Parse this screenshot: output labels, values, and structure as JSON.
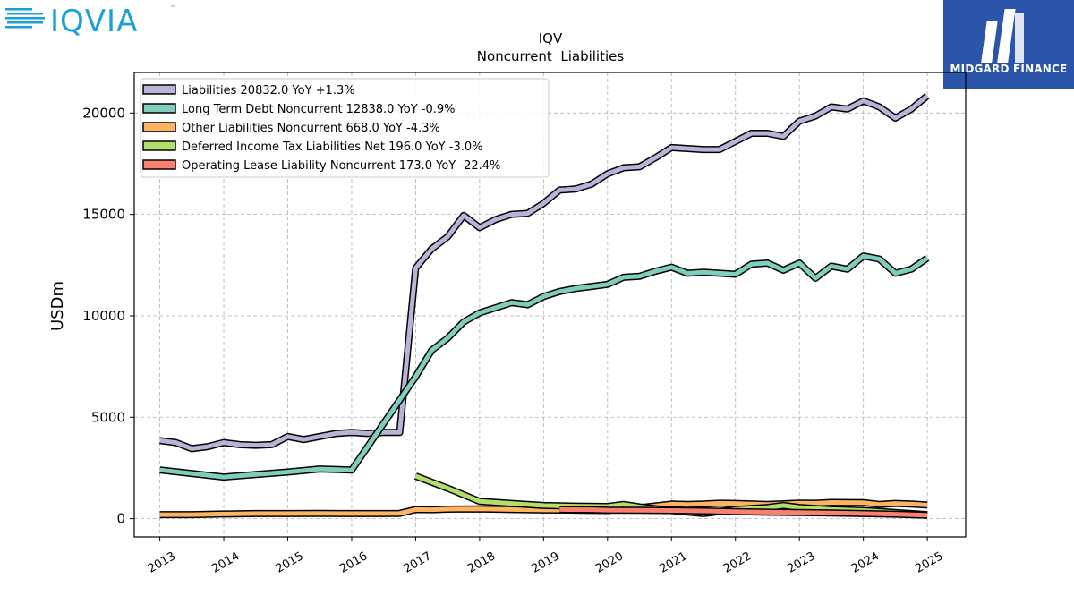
{
  "header": {
    "logo_text": "IQVIA",
    "logo_color": "#1aa0d8",
    "badge_text": "MIDGARD FINANCE",
    "badge_color": "#2a55a8"
  },
  "chart_data": {
    "type": "line",
    "title": "IQV",
    "subtitle": "Noncurrent  Liabilities",
    "ylabel": "USDm",
    "xlabel": "",
    "xlim": [
      2012.6,
      2025.6
    ],
    "ylim": [
      -900,
      22000
    ],
    "grid": true,
    "legend_position": "top-left",
    "x_ticks": [
      "2013",
      "2014",
      "2015",
      "2016",
      "2017",
      "2018",
      "2019",
      "2020",
      "2021",
      "2022",
      "2023",
      "2024",
      "2025"
    ],
    "y_ticks": [
      "0",
      "5000",
      "10000",
      "15000",
      "20000"
    ],
    "series": [
      {
        "name": "Liabilities",
        "legend": "Liabilities  20832.0 YoY +1.3%",
        "color": "#b8b4d8",
        "points": [
          [
            2013.0,
            3850
          ],
          [
            2013.25,
            3750
          ],
          [
            2013.5,
            3450
          ],
          [
            2013.75,
            3550
          ],
          [
            2014.0,
            3750
          ],
          [
            2014.25,
            3650
          ],
          [
            2014.5,
            3620
          ],
          [
            2014.75,
            3650
          ],
          [
            2015.0,
            4050
          ],
          [
            2015.25,
            3900
          ],
          [
            2015.5,
            4050
          ],
          [
            2015.75,
            4200
          ],
          [
            2016.0,
            4250
          ],
          [
            2016.25,
            4200
          ],
          [
            2016.5,
            4250
          ],
          [
            2016.75,
            4250
          ],
          [
            2017.0,
            12350
          ],
          [
            2017.25,
            13300
          ],
          [
            2017.5,
            13900
          ],
          [
            2017.75,
            14950
          ],
          [
            2018.0,
            14350
          ],
          [
            2018.25,
            14750
          ],
          [
            2018.5,
            15000
          ],
          [
            2018.75,
            15050
          ],
          [
            2019.0,
            15550
          ],
          [
            2019.25,
            16200
          ],
          [
            2019.5,
            16250
          ],
          [
            2019.75,
            16500
          ],
          [
            2020.0,
            17000
          ],
          [
            2020.25,
            17300
          ],
          [
            2020.5,
            17350
          ],
          [
            2020.75,
            17800
          ],
          [
            2021.0,
            18300
          ],
          [
            2021.25,
            18250
          ],
          [
            2021.5,
            18200
          ],
          [
            2021.75,
            18200
          ],
          [
            2022.0,
            18600
          ],
          [
            2022.25,
            19000
          ],
          [
            2022.5,
            19000
          ],
          [
            2022.75,
            18850
          ],
          [
            2023.0,
            19600
          ],
          [
            2023.25,
            19850
          ],
          [
            2023.5,
            20300
          ],
          [
            2023.75,
            20200
          ],
          [
            2024.0,
            20600
          ],
          [
            2024.25,
            20300
          ],
          [
            2024.5,
            19750
          ],
          [
            2024.75,
            20200
          ],
          [
            2025.0,
            20850
          ]
        ]
      },
      {
        "name": "Long Term Debt Noncurrent",
        "legend": "Long Term Debt Noncurrent  12838.0 YoY -0.9%",
        "color": "#7fcdbb",
        "points": [
          [
            2013.0,
            2400
          ],
          [
            2014.0,
            2050
          ],
          [
            2015.0,
            2300
          ],
          [
            2015.5,
            2450
          ],
          [
            2016.0,
            2400
          ],
          [
            2017.0,
            7000
          ],
          [
            2017.25,
            8300
          ],
          [
            2017.5,
            8900
          ],
          [
            2017.75,
            9700
          ],
          [
            2018.0,
            10150
          ],
          [
            2018.25,
            10400
          ],
          [
            2018.5,
            10650
          ],
          [
            2018.75,
            10550
          ],
          [
            2019.0,
            10950
          ],
          [
            2019.25,
            11200
          ],
          [
            2019.5,
            11350
          ],
          [
            2019.75,
            11450
          ],
          [
            2020.0,
            11550
          ],
          [
            2020.25,
            11900
          ],
          [
            2020.5,
            11950
          ],
          [
            2020.75,
            12200
          ],
          [
            2021.0,
            12400
          ],
          [
            2021.25,
            12100
          ],
          [
            2021.5,
            12150
          ],
          [
            2021.75,
            12100
          ],
          [
            2022.0,
            12050
          ],
          [
            2022.25,
            12550
          ],
          [
            2022.5,
            12600
          ],
          [
            2022.75,
            12250
          ],
          [
            2023.0,
            12600
          ],
          [
            2023.25,
            11850
          ],
          [
            2023.5,
            12450
          ],
          [
            2023.75,
            12300
          ],
          [
            2024.0,
            12950
          ],
          [
            2024.25,
            12800
          ],
          [
            2024.5,
            12100
          ],
          [
            2024.75,
            12300
          ],
          [
            2025.0,
            12850
          ]
        ]
      },
      {
        "name": "Other Liabilities Noncurrent",
        "legend": "Other Liabilities Noncurrent  668.0 YoY -4.3%",
        "color": "#fdb462",
        "points": [
          [
            2013.0,
            200
          ],
          [
            2013.5,
            200
          ],
          [
            2014.0,
            230
          ],
          [
            2014.5,
            250
          ],
          [
            2015.0,
            250
          ],
          [
            2015.5,
            260
          ],
          [
            2016.0,
            250
          ],
          [
            2016.5,
            250
          ],
          [
            2016.75,
            260
          ],
          [
            2017.0,
            450
          ],
          [
            2017.25,
            440
          ],
          [
            2017.5,
            470
          ],
          [
            2018.0,
            480
          ],
          [
            2018.5,
            450
          ],
          [
            2019.0,
            430
          ],
          [
            2019.5,
            420
          ],
          [
            2020.0,
            400
          ],
          [
            2020.5,
            540
          ],
          [
            2021.0,
            720
          ],
          [
            2021.25,
            700
          ],
          [
            2021.5,
            720
          ],
          [
            2021.75,
            760
          ],
          [
            2022.0,
            750
          ],
          [
            2022.5,
            700
          ],
          [
            2023.0,
            770
          ],
          [
            2023.25,
            760
          ],
          [
            2023.5,
            800
          ],
          [
            2024.0,
            790
          ],
          [
            2024.25,
            700
          ],
          [
            2024.5,
            750
          ],
          [
            2024.75,
            720
          ],
          [
            2025.0,
            670
          ]
        ]
      },
      {
        "name": "Deferred Income Tax Liabilities Net",
        "legend": "Deferred Income Tax Liabilities Net  196.0 YoY -3.0%",
        "color": "#b3de69",
        "points": [
          [
            2017.0,
            2100
          ],
          [
            2017.5,
            1500
          ],
          [
            2018.0,
            850
          ],
          [
            2018.5,
            750
          ],
          [
            2019.0,
            650
          ],
          [
            2019.5,
            620
          ],
          [
            2020.0,
            600
          ],
          [
            2020.25,
            700
          ],
          [
            2020.5,
            580
          ],
          [
            2021.0,
            400
          ],
          [
            2021.5,
            250
          ],
          [
            2022.0,
            450
          ],
          [
            2022.5,
            550
          ],
          [
            2022.75,
            650
          ],
          [
            2023.0,
            550
          ],
          [
            2023.5,
            450
          ],
          [
            2024.0,
            400
          ],
          [
            2024.5,
            300
          ],
          [
            2025.0,
            200
          ]
        ]
      },
      {
        "name": "Operating Lease Liability Noncurrent",
        "legend": "Operating Lease Liability Noncurrent  173.0 YoY -22.4%",
        "color": "#fb8072",
        "points": [
          [
            2019.25,
            450
          ],
          [
            2019.75,
            440
          ],
          [
            2020.0,
            420
          ],
          [
            2020.5,
            410
          ],
          [
            2021.0,
            400
          ],
          [
            2021.5,
            380
          ],
          [
            2022.0,
            350
          ],
          [
            2022.5,
            320
          ],
          [
            2023.0,
            300
          ],
          [
            2023.5,
            280
          ],
          [
            2024.0,
            250
          ],
          [
            2024.5,
            220
          ],
          [
            2025.0,
            173
          ]
        ]
      }
    ]
  }
}
